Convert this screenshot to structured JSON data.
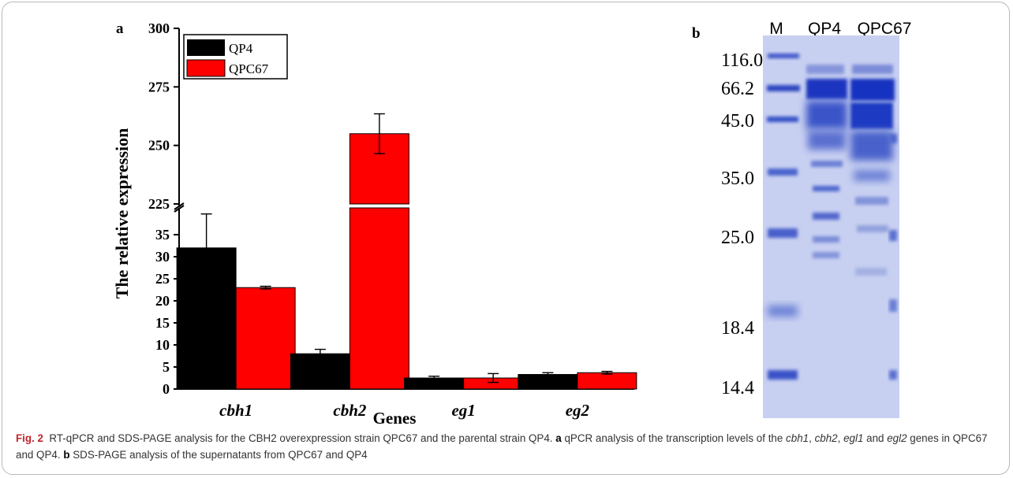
{
  "panel_a": {
    "label": "a",
    "ylabel": "The relative expression",
    "xlabel": "Genes"
  },
  "panel_b": {
    "label": "b",
    "lane_labels": [
      "M",
      "QP4",
      "QPC67"
    ],
    "marker_sizes": [
      "116.0",
      "66.2",
      "45.0",
      "35.0",
      "25.0",
      "18.4",
      "14.4"
    ]
  },
  "chart_data": {
    "type": "bar",
    "categories": [
      "cbh1",
      "cbh2",
      "eg1",
      "eg2"
    ],
    "series": [
      {
        "name": "QP4",
        "values": [
          32,
          8,
          2.5,
          3.3
        ],
        "errors": [
          7.7,
          1.0,
          0.4,
          0.4
        ],
        "color": "#000000"
      },
      {
        "name": "QPC67",
        "values": [
          23,
          255,
          2.5,
          3.7
        ],
        "errors": [
          0.3,
          8.5,
          1.0,
          0.3
        ],
        "color": "#ff0000"
      }
    ],
    "xlabel": "Genes",
    "ylabel": "The relative expression",
    "axis_break": {
      "lower": [
        0,
        40
      ],
      "upper": [
        225,
        300
      ]
    },
    "lower_ticks": [
      "0",
      "5",
      "10",
      "15",
      "20",
      "25",
      "30",
      "35"
    ],
    "upper_ticks": [
      "225",
      "250",
      "275",
      "300"
    ],
    "legend_position": "top-left",
    "grid": false
  },
  "caption": {
    "fig_label": "Fig. 2",
    "text1": "RT-qPCR and SDS-PAGE analysis for the CBH2 overexpression strain QPC67 and the parental strain QP4.",
    "a_label": "a",
    "text2": "qPCR analysis of the transcription levels of the",
    "gene1": "cbh1",
    "sep1": ",",
    "gene2": "cbh2",
    "sep2": ",",
    "gene3": "egl1",
    "and": "and",
    "gene4": "egl2",
    "text3": "genes in QPC67 and QP4.",
    "b_label": "b",
    "text4": "SDS-PAGE analysis of the supernatants from QPC67 and QP4"
  },
  "colors": {
    "qp4": "#000000",
    "qpc67": "#ff0000",
    "gel_background": "#bfc8ee",
    "band": "#2a45c4",
    "caption_label": "#c0262d"
  }
}
